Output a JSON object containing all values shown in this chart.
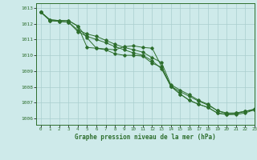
{
  "title": "Graphe pression niveau de la mer (hPa)",
  "bg_color": "#ceeaea",
  "grid_color": "#aacece",
  "line_color": "#2d6e2d",
  "xlim": [
    -0.5,
    23
  ],
  "ylim": [
    1005.6,
    1013.3
  ],
  "yticks": [
    1006,
    1007,
    1008,
    1009,
    1010,
    1011,
    1012,
    1013
  ],
  "xticks": [
    0,
    1,
    2,
    3,
    4,
    5,
    6,
    7,
    8,
    9,
    10,
    11,
    12,
    13,
    14,
    15,
    16,
    17,
    18,
    19,
    20,
    21,
    22,
    23
  ],
  "line1": [
    1012.75,
    1012.25,
    1012.2,
    1012.2,
    1011.85,
    1010.5,
    1010.45,
    1010.4,
    1010.35,
    1010.55,
    1010.6,
    1010.5,
    1010.45,
    1009.3,
    1008.05,
    1007.55,
    1007.15,
    1006.9,
    1006.7,
    1006.35,
    1006.25,
    1006.35,
    1006.45,
    1006.55
  ],
  "line2": [
    1012.75,
    1012.25,
    1012.2,
    1012.2,
    1011.85,
    1011.1,
    1010.45,
    1010.35,
    1010.1,
    1010.0,
    1010.0,
    1009.95,
    1009.5,
    1009.25,
    1008.05,
    1007.55,
    1007.15,
    1006.9,
    1006.7,
    1006.35,
    1006.25,
    1006.25,
    1006.35,
    1006.55
  ],
  "line3": [
    1012.75,
    1012.2,
    1012.15,
    1012.1,
    1011.5,
    1011.2,
    1011.0,
    1010.8,
    1010.55,
    1010.35,
    1010.15,
    1010.0,
    1009.65,
    1009.15,
    1008.05,
    1007.7,
    1007.4,
    1007.1,
    1006.85,
    1006.5,
    1006.3,
    1006.3,
    1006.45,
    1006.55
  ],
  "line4": [
    1012.75,
    1012.2,
    1012.15,
    1012.1,
    1011.6,
    1011.35,
    1011.2,
    1010.95,
    1010.7,
    1010.5,
    1010.35,
    1010.2,
    1009.85,
    1009.55,
    1008.15,
    1007.8,
    1007.5,
    1007.15,
    1006.9,
    1006.5,
    1006.35,
    1006.35,
    1006.45,
    1006.6
  ]
}
